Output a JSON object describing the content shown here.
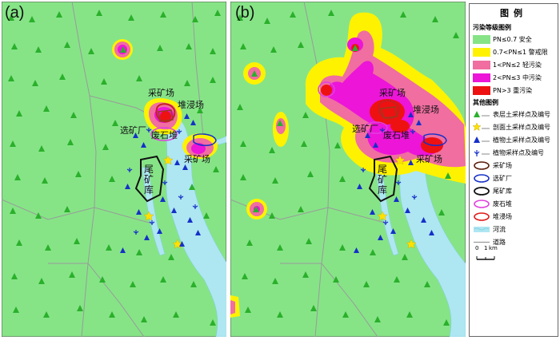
{
  "panels": [
    {
      "label": "(a)"
    },
    {
      "label": "(b)"
    }
  ],
  "place_labels": {
    "mining_area": "采矿场",
    "heap_leach": "堆浸场",
    "processing_plant": "选矿厂",
    "waste_rock": "废石堆",
    "tailings_pond": "尾矿库"
  },
  "legend": {
    "title": "图例",
    "pollution_heading": "污染等级图例",
    "pollution_classes": [
      {
        "label": "PN≤0.7 安全",
        "color": "#86e487"
      },
      {
        "label": "0.7<PN≤1 警戒限",
        "color": "#fff200"
      },
      {
        "label": "1<PN≤2 轻污染",
        "color": "#f06ea0"
      },
      {
        "label": "2<PN≤3 中污染",
        "color": "#ec15d8"
      },
      {
        "label": "PN>3 重污染",
        "color": "#ee1111"
      }
    ],
    "other_heading": "其他图例",
    "other_items": [
      {
        "label": "表层土采样点及编号",
        "icon": "green-triangle-icon"
      },
      {
        "label": "剖面土采样点及编号",
        "icon": "yellow-star-icon"
      },
      {
        "label": "植物土采样点及编号",
        "icon": "blue-triangle-icon"
      },
      {
        "label": "植物采样点及编号",
        "icon": "plant-icon"
      },
      {
        "label": "采矿场",
        "icon": "brown-outline-icon"
      },
      {
        "label": "选矿厂",
        "icon": "blue-outline-icon"
      },
      {
        "label": "尾矿库",
        "icon": "black-outline-icon"
      },
      {
        "label": "废石堆",
        "icon": "magenta-outline-icon"
      },
      {
        "label": "堆浸场",
        "icon": "red-outline-icon"
      },
      {
        "label": "河流",
        "icon": "river-icon"
      },
      {
        "label": "道路",
        "icon": "road-icon"
      }
    ],
    "scale": {
      "zero": "0",
      "one": "1",
      "unit": "km"
    }
  },
  "colors": {
    "safe": "#86e487",
    "warning": "#fff200",
    "light": "#f06ea0",
    "medium": "#ec15d8",
    "heavy": "#ee1111",
    "river": "#aee6f2",
    "road": "#9a9a9a"
  }
}
